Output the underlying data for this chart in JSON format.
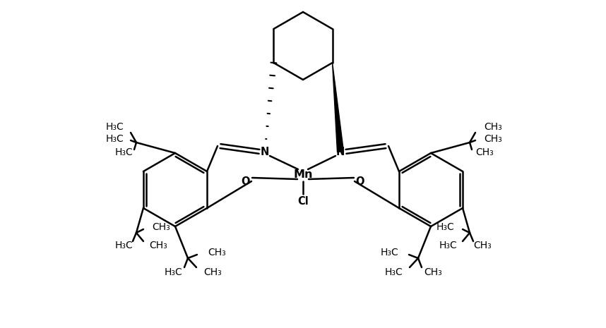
{
  "background": "#ffffff",
  "line_color": "#000000",
  "line_width": 1.8,
  "font_size": 10.5,
  "fig_width": 8.58,
  "fig_height": 4.65,
  "dpi": 100,
  "xlim": [
    0,
    858
  ],
  "ylim": [
    0,
    465
  ]
}
